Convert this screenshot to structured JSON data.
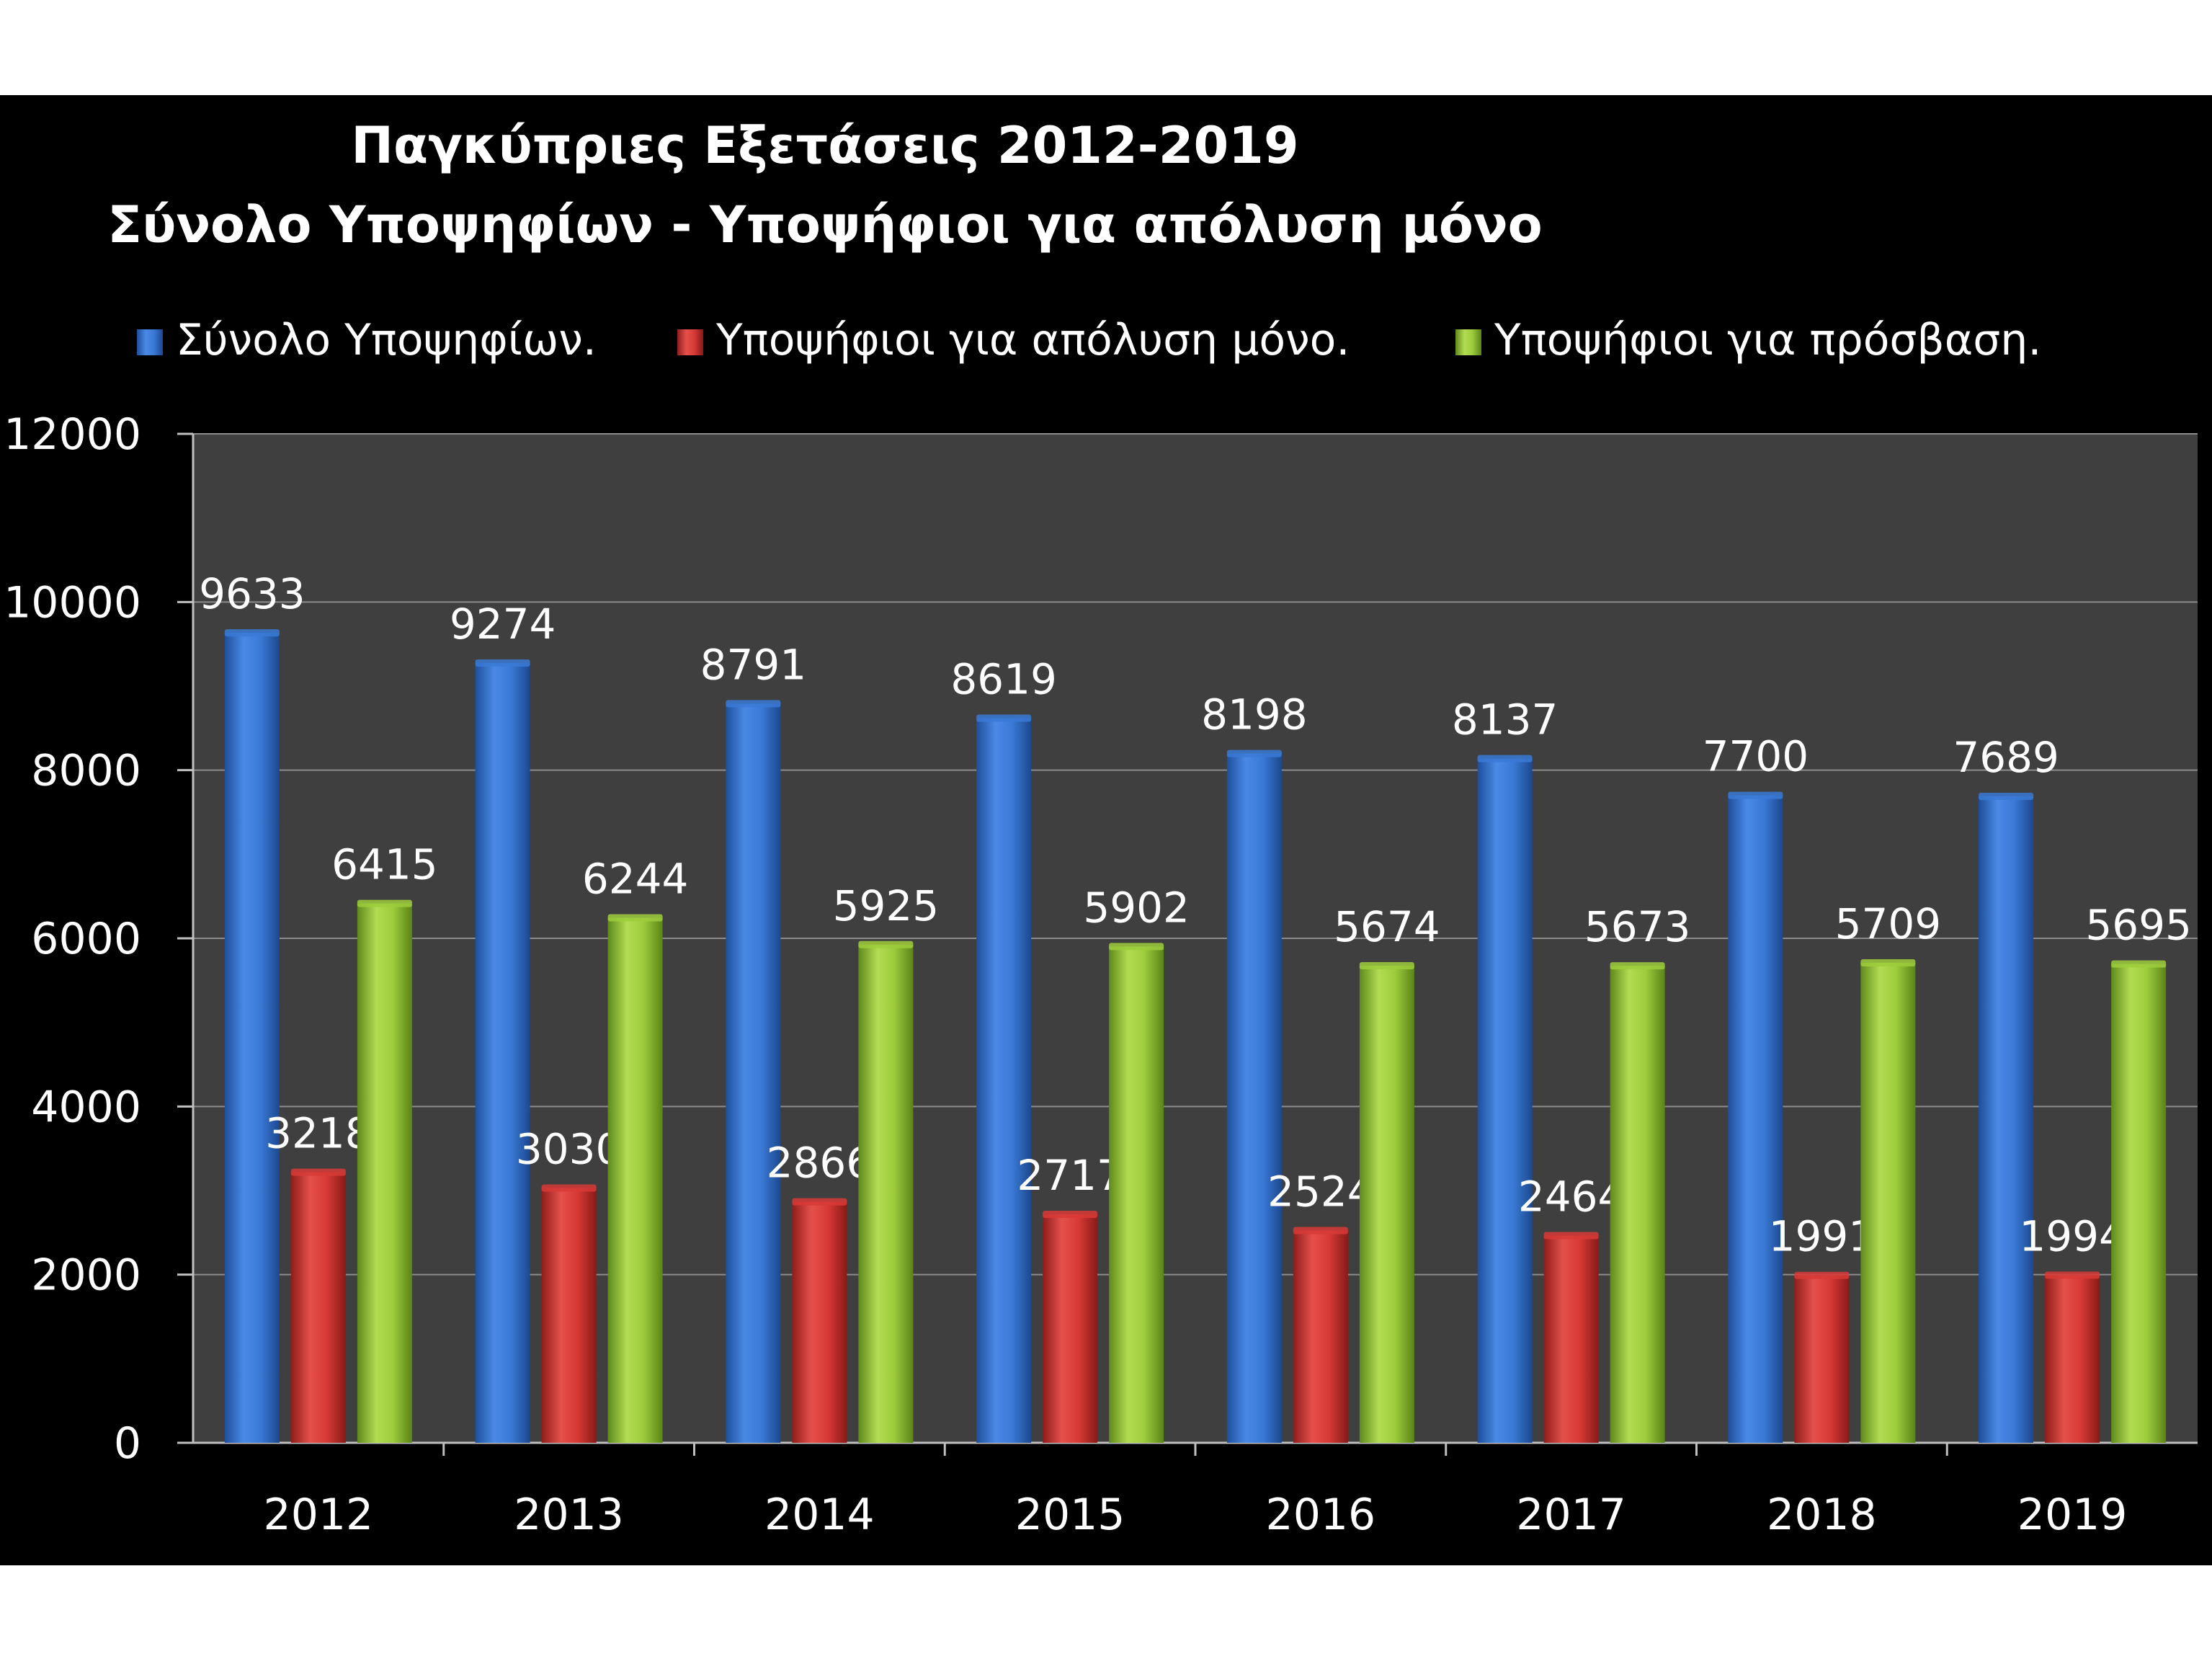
{
  "chart_data": {
    "type": "bar",
    "title": "Παγκύπριες Εξετάσεις 2012-2019",
    "subtitle": "Σύνολο Υποψηφίων - Υποψήφιοι για απόλυση μόνο",
    "xlabel": "",
    "ylabel": "",
    "categories": [
      "2012",
      "2013",
      "2014",
      "2015",
      "2016",
      "2017",
      "2018",
      "2019"
    ],
    "series": [
      {
        "name": "Σύνολο Υποψηφίων.",
        "color": "#3a7ad6",
        "values": [
          9633,
          9274,
          8791,
          8619,
          8198,
          8137,
          7700,
          7689
        ]
      },
      {
        "name": "Υποψήφιοι για απόλυση μόνο.",
        "color": "#d83a36",
        "values": [
          3218,
          3030,
          2866,
          2717,
          2524,
          2464,
          1991,
          1994
        ]
      },
      {
        "name": "Υποψήφιοι για πρόσβαση.",
        "color": "#9ccc3c",
        "values": [
          6415,
          6244,
          5925,
          5902,
          5674,
          5673,
          5709,
          5695
        ]
      }
    ],
    "ylim": [
      0,
      12000
    ],
    "yticks": [
      0,
      2000,
      4000,
      6000,
      8000,
      10000,
      12000
    ],
    "grid": true,
    "legend_position": "top",
    "data_labels": true,
    "background": "#000000",
    "plot_background": "#3f3f3f"
  }
}
